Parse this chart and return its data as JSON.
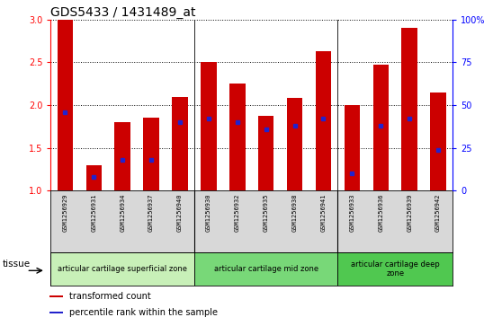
{
  "title": "GDS5433 / 1431489_at",
  "samples": [
    "GSM1256929",
    "GSM1256931",
    "GSM1256934",
    "GSM1256937",
    "GSM1256940",
    "GSM1256930",
    "GSM1256932",
    "GSM1256935",
    "GSM1256938",
    "GSM1256941",
    "GSM1256933",
    "GSM1256936",
    "GSM1256939",
    "GSM1256942"
  ],
  "transformed_count": [
    3.0,
    1.3,
    1.8,
    1.85,
    2.1,
    2.5,
    2.25,
    1.88,
    2.08,
    2.63,
    2.0,
    2.47,
    2.9,
    2.15
  ],
  "percentile_rank": [
    46,
    8,
    18,
    18,
    40,
    42,
    40,
    36,
    38,
    42,
    10,
    38,
    42,
    24
  ],
  "ylim_left": [
    1.0,
    3.0
  ],
  "ylim_right": [
    0,
    100
  ],
  "yticks_left": [
    1.0,
    1.5,
    2.0,
    2.5,
    3.0
  ],
  "yticks_right": [
    0,
    25,
    50,
    75,
    100
  ],
  "bar_color": "#cc0000",
  "dot_color": "#2222cc",
  "label_bg_color": "#d8d8d8",
  "groups": [
    {
      "label": "articular cartilage superficial zone",
      "start": 0,
      "end": 4,
      "color": "#c8f0b8"
    },
    {
      "label": "articular cartilage mid zone",
      "start": 5,
      "end": 9,
      "color": "#78d878"
    },
    {
      "label": "articular cartilage deep\nzone",
      "start": 10,
      "end": 13,
      "color": "#50c850"
    }
  ],
  "group_dividers": [
    4.5,
    9.5
  ],
  "tissue_label": "tissue",
  "legend_items": [
    {
      "label": "transformed count",
      "color": "#cc0000"
    },
    {
      "label": "percentile rank within the sample",
      "color": "#2222cc"
    }
  ],
  "title_fontsize": 10,
  "tick_fontsize": 7,
  "sample_fontsize": 5,
  "group_fontsize": 6,
  "legend_fontsize": 7
}
